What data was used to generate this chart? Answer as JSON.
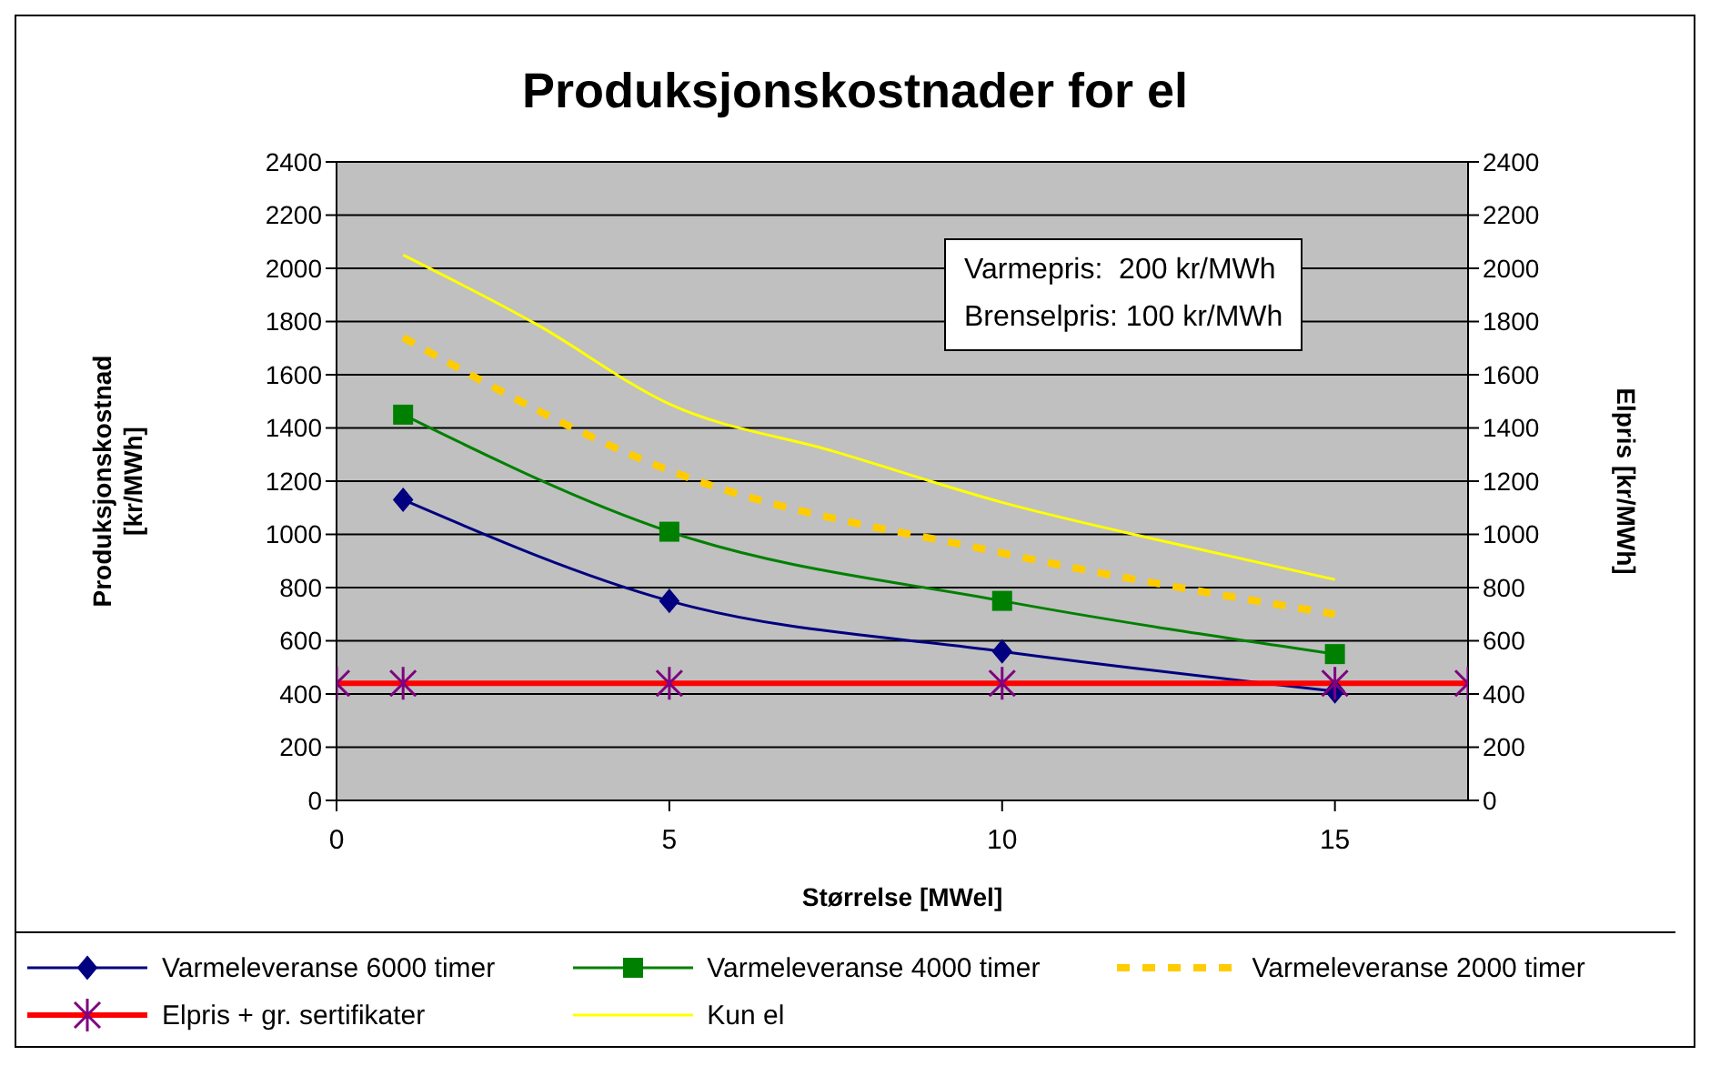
{
  "chart_data": {
    "type": "line",
    "title": "Produksjonskostnader for el",
    "xlabel": "Størrelse [MWel]",
    "ylabel": "Produksjonskostnad\n[kr/MWh]",
    "y2label": "Elpris [kr/MWh]",
    "xlim": [
      0,
      17
    ],
    "xticks": [
      0,
      5,
      10,
      15
    ],
    "ylim": [
      0,
      2400
    ],
    "yticks": [
      0,
      200,
      400,
      600,
      800,
      1000,
      1200,
      1400,
      1600,
      1800,
      2000,
      2200,
      2400
    ],
    "y2lim": [
      0,
      2400
    ],
    "y2ticks": [
      0,
      200,
      400,
      600,
      800,
      1000,
      1200,
      1400,
      1600,
      1800,
      2000,
      2200,
      2400
    ],
    "grid": "y",
    "legend": "bottom",
    "annotations": [
      "Varmepris:  200 kr/MWh",
      "Brenselpris: 100 kr/MWh"
    ],
    "series": [
      {
        "name": "Varmeleveranse 6000 timer",
        "color": "#000080",
        "marker": "diamond",
        "line_style": "solid",
        "x": [
          1,
          5,
          10,
          15
        ],
        "values": [
          1130,
          750,
          560,
          410
        ]
      },
      {
        "name": "Varmeleveranse 4000 timer",
        "color": "#008000",
        "marker": "square",
        "line_style": "solid",
        "x": [
          1,
          5,
          10,
          15
        ],
        "values": [
          1450,
          1010,
          750,
          550
        ]
      },
      {
        "name": "Varmeleveranse 2000 timer",
        "color": "#ffcc00",
        "marker": "none",
        "line_style": "dashed",
        "x": [
          1,
          5,
          10,
          15
        ],
        "values": [
          1740,
          1240,
          930,
          700
        ]
      },
      {
        "name": "Elpris + gr. sertifikater",
        "color": "#ff0000",
        "marker": "cross",
        "line_style": "solid",
        "axis": "y2",
        "x": [
          0,
          1,
          5,
          10,
          15,
          17
        ],
        "values": [
          440,
          440,
          440,
          440,
          440,
          440
        ]
      },
      {
        "name": "Kun el",
        "color": "#ffff00",
        "marker": "none",
        "line_style": "solid",
        "x": [
          1,
          3,
          5,
          7.5,
          10,
          12.5,
          15
        ],
        "values": [
          2050,
          1790,
          1490,
          1310,
          1120,
          970,
          830
        ]
      }
    ]
  }
}
